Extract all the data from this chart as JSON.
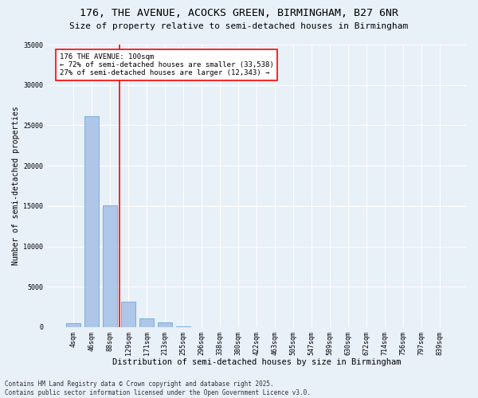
{
  "title": "176, THE AVENUE, ACOCKS GREEN, BIRMINGHAM, B27 6NR",
  "subtitle": "Size of property relative to semi-detached houses in Birmingham",
  "xlabel": "Distribution of semi-detached houses by size in Birmingham",
  "ylabel": "Number of semi-detached properties",
  "categories": [
    "4sqm",
    "46sqm",
    "88sqm",
    "129sqm",
    "171sqm",
    "213sqm",
    "255sqm",
    "296sqm",
    "338sqm",
    "380sqm",
    "422sqm",
    "463sqm",
    "505sqm",
    "547sqm",
    "589sqm",
    "630sqm",
    "672sqm",
    "714sqm",
    "756sqm",
    "797sqm",
    "839sqm"
  ],
  "values": [
    500,
    26100,
    15100,
    3200,
    1100,
    600,
    80,
    30,
    15,
    8,
    5,
    3,
    2,
    1,
    1,
    0,
    0,
    0,
    0,
    0,
    0
  ],
  "bar_color": "#aec6e8",
  "bar_edge_color": "#5a9fd4",
  "vline_x": 2.5,
  "vline_color": "red",
  "annotation_text": "176 THE AVENUE: 100sqm\n← 72% of semi-detached houses are smaller (33,538)\n27% of semi-detached houses are larger (12,343) →",
  "ylim": [
    0,
    35000
  ],
  "yticks": [
    0,
    5000,
    10000,
    15000,
    20000,
    25000,
    30000,
    35000
  ],
  "background_color": "#e8f0f8",
  "plot_bg_color": "#e8f0f8",
  "footer": "Contains HM Land Registry data © Crown copyright and database right 2025.\nContains public sector information licensed under the Open Government Licence v3.0.",
  "title_fontsize": 9.5,
  "subtitle_fontsize": 8,
  "xlabel_fontsize": 7.5,
  "ylabel_fontsize": 7,
  "tick_fontsize": 6,
  "annotation_fontsize": 6.5,
  "footer_fontsize": 5.5
}
